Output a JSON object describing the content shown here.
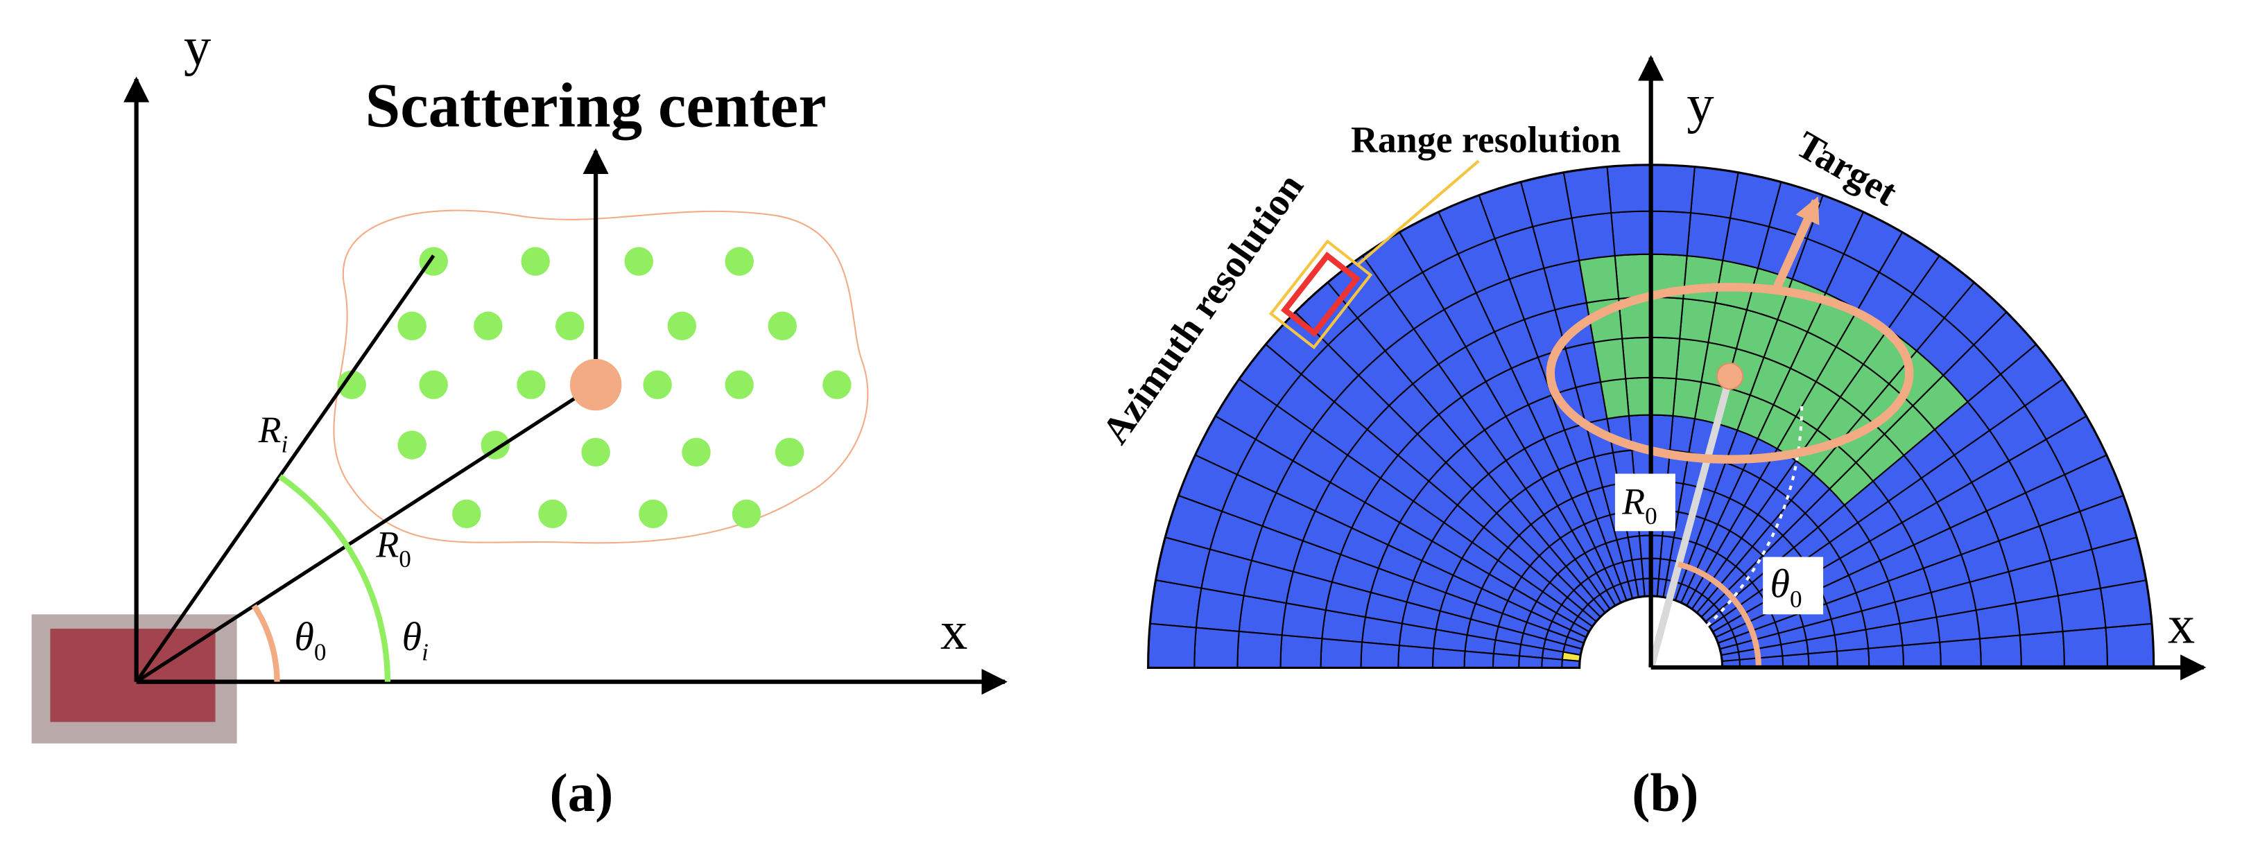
{
  "panel_a": {
    "y_axis": "y",
    "x_axis": "x",
    "title": "Scattering center",
    "r_i": {
      "symbol": "R",
      "subscript": "i"
    },
    "r_0": {
      "symbol": "R",
      "subscript": "0"
    },
    "theta_0": {
      "symbol": "θ",
      "subscript": "0"
    },
    "theta_i": {
      "symbol": "θ",
      "subscript": "i"
    },
    "caption": "(a)"
  },
  "panel_b": {
    "y_axis": "y",
    "x_axis": "x",
    "range_resolution": "Range resolution",
    "azimuth_resolution": "Azimuth resolution",
    "target": "Target",
    "r_0": {
      "symbol": "R",
      "subscript": "0"
    },
    "theta_0": {
      "symbol": "θ",
      "subscript": "0"
    },
    "caption": "(b)"
  }
}
